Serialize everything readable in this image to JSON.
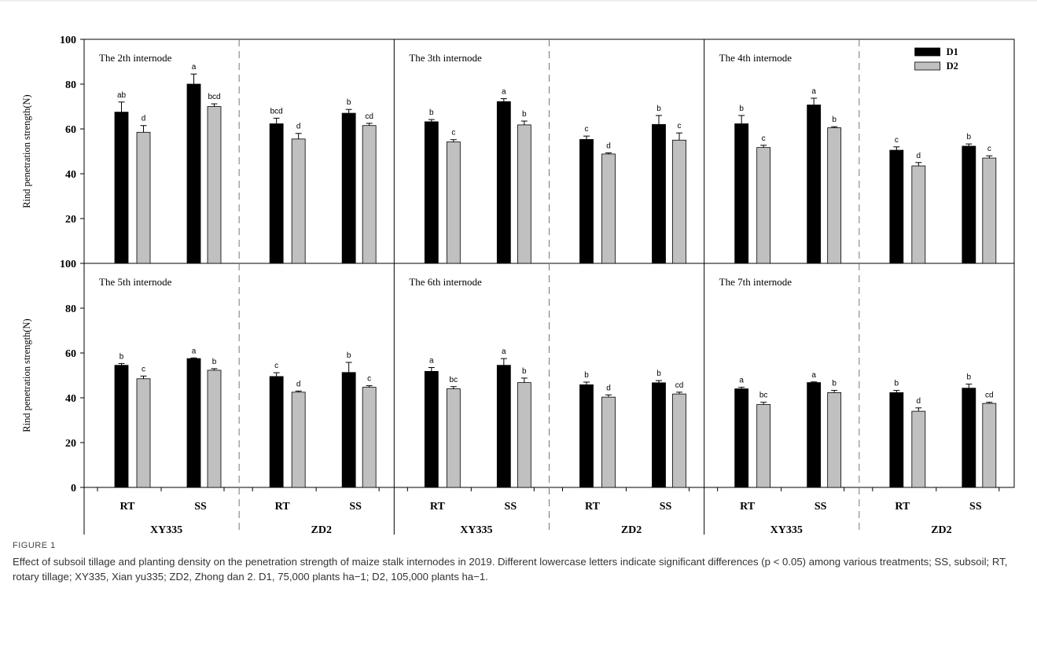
{
  "colors": {
    "D1": "#000000",
    "D2": "#c0c0c0"
  },
  "chart_data": {
    "type": "bar",
    "ylabel": "Rind penetration strength(N)",
    "ylim": [
      0,
      100
    ],
    "yticks": [
      "0",
      "20",
      "40",
      "60",
      "80",
      "100"
    ],
    "legend": {
      "position": "top-right",
      "entries": [
        "D1",
        "D2"
      ]
    },
    "x_groups": {
      "tillage": [
        "RT",
        "SS"
      ],
      "cultivars": [
        "XY335",
        "ZD2"
      ]
    },
    "panels": [
      {
        "title": "The 2th internode",
        "bars": [
          {
            "cultivar": "XY335",
            "tillage": "RT",
            "D1": 67.5,
            "D1_err": 4.5,
            "D1_letter": "ab",
            "D2": 58.5,
            "D2_err": 3.0,
            "D2_letter": "d"
          },
          {
            "cultivar": "XY335",
            "tillage": "SS",
            "D1": 80.0,
            "D1_err": 4.5,
            "D1_letter": "a",
            "D2": 70.0,
            "D2_err": 1.2,
            "D2_letter": "bcd"
          },
          {
            "cultivar": "ZD2",
            "tillage": "RT",
            "D1": 62.3,
            "D1_err": 2.5,
            "D1_letter": "bcd",
            "D2": 55.5,
            "D2_err": 2.5,
            "D2_letter": "d"
          },
          {
            "cultivar": "ZD2",
            "tillage": "SS",
            "D1": 67.0,
            "D1_err": 1.7,
            "D1_letter": "b",
            "D2": 61.5,
            "D2_err": 1.0,
            "D2_letter": "cd"
          }
        ]
      },
      {
        "title": "The 3th internode",
        "bars": [
          {
            "cultivar": "XY335",
            "tillage": "RT",
            "D1": 63.2,
            "D1_err": 1.0,
            "D1_letter": "b",
            "D2": 54.2,
            "D2_err": 1.0,
            "D2_letter": "c"
          },
          {
            "cultivar": "XY335",
            "tillage": "SS",
            "D1": 72.2,
            "D1_err": 1.3,
            "D1_letter": "a",
            "D2": 61.8,
            "D2_err": 1.7,
            "D2_letter": "b"
          },
          {
            "cultivar": "ZD2",
            "tillage": "RT",
            "D1": 55.3,
            "D1_err": 1.5,
            "D1_letter": "c",
            "D2": 48.8,
            "D2_err": 0.5,
            "D2_letter": "d"
          },
          {
            "cultivar": "ZD2",
            "tillage": "SS",
            "D1": 62.0,
            "D1_err": 4.0,
            "D1_letter": "b",
            "D2": 55.0,
            "D2_err": 3.2,
            "D2_letter": "c"
          }
        ]
      },
      {
        "title": "The 4th internode",
        "bars": [
          {
            "cultivar": "XY335",
            "tillage": "RT",
            "D1": 62.3,
            "D1_err": 3.7,
            "D1_letter": "b",
            "D2": 51.7,
            "D2_err": 1.0,
            "D2_letter": "c"
          },
          {
            "cultivar": "XY335",
            "tillage": "SS",
            "D1": 70.7,
            "D1_err": 3.0,
            "D1_letter": "a",
            "D2": 60.5,
            "D2_err": 0.5,
            "D2_letter": "b"
          },
          {
            "cultivar": "ZD2",
            "tillage": "RT",
            "D1": 50.5,
            "D1_err": 1.5,
            "D1_letter": "c",
            "D2": 43.5,
            "D2_err": 1.5,
            "D2_letter": "d"
          },
          {
            "cultivar": "ZD2",
            "tillage": "SS",
            "D1": 52.3,
            "D1_err": 1.0,
            "D1_letter": "b",
            "D2": 47.0,
            "D2_err": 1.0,
            "D2_letter": "c"
          }
        ]
      },
      {
        "title": "The 5th internode",
        "bars": [
          {
            "cultivar": "XY335",
            "tillage": "RT",
            "D1": 54.5,
            "D1_err": 0.8,
            "D1_letter": "b",
            "D2": 48.5,
            "D2_err": 1.2,
            "D2_letter": "c"
          },
          {
            "cultivar": "XY335",
            "tillage": "SS",
            "D1": 57.5,
            "D1_err": 0.3,
            "D1_letter": "a",
            "D2": 52.3,
            "D2_err": 0.7,
            "D2_letter": "b"
          },
          {
            "cultivar": "ZD2",
            "tillage": "RT",
            "D1": 49.5,
            "D1_err": 1.7,
            "D1_letter": "c",
            "D2": 42.5,
            "D2_err": 0.5,
            "D2_letter": "d"
          },
          {
            "cultivar": "ZD2",
            "tillage": "SS",
            "D1": 51.3,
            "D1_err": 4.5,
            "D1_letter": "b",
            "D2": 44.7,
            "D2_err": 0.7,
            "D2_letter": "c"
          }
        ]
      },
      {
        "title": "The 6th internode",
        "bars": [
          {
            "cultivar": "XY335",
            "tillage": "RT",
            "D1": 51.8,
            "D1_err": 1.7,
            "D1_letter": "a",
            "D2": 44.0,
            "D2_err": 1.0,
            "D2_letter": "bc"
          },
          {
            "cultivar": "XY335",
            "tillage": "SS",
            "D1": 54.5,
            "D1_err": 3.0,
            "D1_letter": "a",
            "D2": 46.8,
            "D2_err": 2.0,
            "D2_letter": "b"
          },
          {
            "cultivar": "ZD2",
            "tillage": "RT",
            "D1": 45.8,
            "D1_err": 1.2,
            "D1_letter": "b",
            "D2": 40.3,
            "D2_err": 1.0,
            "D2_letter": "d"
          },
          {
            "cultivar": "ZD2",
            "tillage": "SS",
            "D1": 46.7,
            "D1_err": 1.0,
            "D1_letter": "b",
            "D2": 41.7,
            "D2_err": 0.8,
            "D2_letter": "cd"
          }
        ]
      },
      {
        "title": "The 7th internode",
        "bars": [
          {
            "cultivar": "XY335",
            "tillage": "RT",
            "D1": 44.0,
            "D1_err": 0.7,
            "D1_letter": "a",
            "D2": 37.0,
            "D2_err": 1.0,
            "D2_letter": "bc"
          },
          {
            "cultivar": "XY335",
            "tillage": "SS",
            "D1": 46.8,
            "D1_err": 0.3,
            "D1_letter": "a",
            "D2": 42.3,
            "D2_err": 1.0,
            "D2_letter": "b"
          },
          {
            "cultivar": "ZD2",
            "tillage": "RT",
            "D1": 42.3,
            "D1_err": 1.0,
            "D1_letter": "b",
            "D2": 34.0,
            "D2_err": 1.5,
            "D2_letter": "d"
          },
          {
            "cultivar": "ZD2",
            "tillage": "SS",
            "D1": 44.3,
            "D1_err": 1.8,
            "D1_letter": "b",
            "D2": 37.5,
            "D2_err": 0.5,
            "D2_letter": "cd"
          }
        ]
      }
    ]
  },
  "caption": {
    "label": "FIGURE 1",
    "text": "Effect of subsoil tillage and planting density on the penetration strength of maize stalk internodes in 2019. Different lowercase letters indicate significant differences (p < 0.05) among various treatments; SS, subsoil; RT, rotary tillage; XY335, Xian yu335; ZD2, Zhong dan 2. D1, 75,000 plants ha−1; D2, 105,000 plants ha−1."
  }
}
